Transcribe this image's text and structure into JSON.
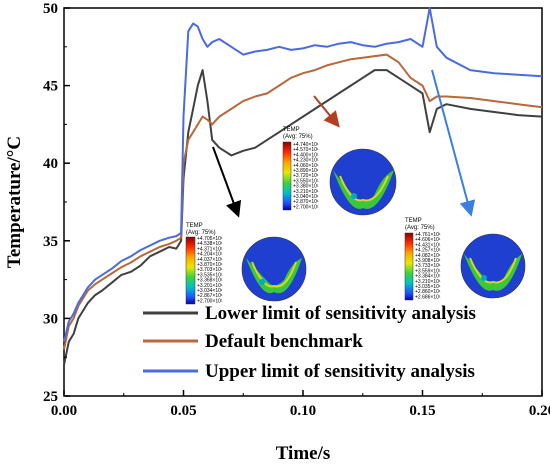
{
  "chart_data": {
    "type": "line",
    "title": "",
    "xlabel": "Time/s",
    "ylabel": "Temperature/°C",
    "xlim": [
      0.0,
      0.2
    ],
    "ylim": [
      25,
      50
    ],
    "xticks": [
      0.0,
      0.05,
      0.1,
      0.15,
      0.2
    ],
    "xtick_labels": [
      "0.00",
      "0.05",
      "0.10",
      "0.15",
      "0.20"
    ],
    "yticks": [
      25,
      30,
      35,
      40,
      45,
      50
    ],
    "ytick_labels": [
      "25",
      "30",
      "35",
      "40",
      "45",
      "50"
    ],
    "grid": false,
    "legend": "bottom-right",
    "series": [
      {
        "name": "Lower limit of sensitivity analysis",
        "color": "#404040",
        "x": [
          0.0,
          0.002,
          0.004,
          0.006,
          0.008,
          0.01,
          0.013,
          0.016,
          0.02,
          0.024,
          0.028,
          0.032,
          0.036,
          0.04,
          0.044,
          0.047,
          0.049,
          0.05,
          0.052,
          0.054,
          0.056,
          0.058,
          0.06,
          0.062,
          0.065,
          0.07,
          0.075,
          0.08,
          0.085,
          0.09,
          0.095,
          0.1,
          0.105,
          0.11,
          0.115,
          0.12,
          0.125,
          0.13,
          0.135,
          0.14,
          0.145,
          0.15,
          0.153,
          0.156,
          0.16,
          0.17,
          0.18,
          0.19,
          0.2
        ],
        "y": [
          27.0,
          28.5,
          29.0,
          30.0,
          30.5,
          31.0,
          31.5,
          31.8,
          32.3,
          32.8,
          33.0,
          33.4,
          34.0,
          34.3,
          34.6,
          34.5,
          35.0,
          39.0,
          42.0,
          43.5,
          45.0,
          46.0,
          44.0,
          41.5,
          41.0,
          40.5,
          40.8,
          41.0,
          41.5,
          42.0,
          42.5,
          43.0,
          43.5,
          44.0,
          44.5,
          45.0,
          45.5,
          46.0,
          46.0,
          45.5,
          45.0,
          44.5,
          42.0,
          43.5,
          43.8,
          43.5,
          43.3,
          43.1,
          43.0
        ]
      },
      {
        "name": "Default benchmark",
        "color": "#b8683a",
        "x": [
          0.0,
          0.002,
          0.004,
          0.006,
          0.008,
          0.01,
          0.013,
          0.016,
          0.02,
          0.024,
          0.028,
          0.032,
          0.036,
          0.04,
          0.044,
          0.047,
          0.049,
          0.05,
          0.052,
          0.054,
          0.056,
          0.058,
          0.06,
          0.062,
          0.065,
          0.07,
          0.075,
          0.08,
          0.085,
          0.09,
          0.095,
          0.1,
          0.105,
          0.11,
          0.115,
          0.12,
          0.125,
          0.13,
          0.135,
          0.14,
          0.145,
          0.15,
          0.153,
          0.156,
          0.16,
          0.17,
          0.18,
          0.19,
          0.2
        ],
        "y": [
          28.0,
          29.5,
          30.0,
          30.8,
          31.3,
          31.8,
          32.2,
          32.5,
          32.9,
          33.3,
          33.6,
          34.0,
          34.3,
          34.6,
          34.8,
          35.0,
          35.2,
          40.0,
          41.5,
          42.0,
          42.5,
          43.0,
          42.8,
          42.5,
          43.0,
          43.5,
          44.0,
          44.3,
          44.5,
          45.0,
          45.5,
          45.8,
          46.0,
          46.3,
          46.5,
          46.7,
          46.8,
          46.9,
          47.0,
          46.5,
          45.5,
          45.0,
          44.0,
          44.3,
          44.3,
          44.2,
          44.0,
          43.8,
          43.6
        ]
      },
      {
        "name": "Upper limit of sensitivity analysis",
        "color": "#4a6be0",
        "x": [
          0.0,
          0.002,
          0.004,
          0.006,
          0.008,
          0.01,
          0.013,
          0.016,
          0.02,
          0.024,
          0.028,
          0.032,
          0.036,
          0.04,
          0.044,
          0.047,
          0.049,
          0.05,
          0.052,
          0.054,
          0.056,
          0.058,
          0.06,
          0.062,
          0.065,
          0.07,
          0.075,
          0.08,
          0.085,
          0.09,
          0.095,
          0.1,
          0.105,
          0.11,
          0.115,
          0.12,
          0.125,
          0.13,
          0.135,
          0.14,
          0.145,
          0.15,
          0.153,
          0.156,
          0.16,
          0.17,
          0.18,
          0.19,
          0.2
        ],
        "y": [
          28.5,
          29.8,
          30.3,
          31.0,
          31.5,
          32.0,
          32.5,
          32.8,
          33.2,
          33.7,
          34.0,
          34.4,
          34.7,
          35.0,
          35.2,
          35.3,
          35.5,
          43.0,
          48.5,
          49.0,
          48.8,
          48.0,
          47.5,
          47.8,
          48.0,
          47.5,
          47.0,
          47.2,
          47.3,
          47.5,
          47.3,
          47.4,
          47.6,
          47.5,
          47.7,
          47.8,
          47.6,
          47.5,
          47.7,
          47.8,
          48.0,
          47.5,
          50.0,
          47.5,
          46.8,
          46.0,
          45.8,
          45.7,
          45.6
        ]
      }
    ],
    "insets": [
      {
        "title": "TEMP",
        "subtitle": "(Avg: 75%)",
        "values": [
          "+4.705×10¹",
          "+4.538×10¹",
          "+4.371×10¹",
          "+4.204×10¹",
          "+4.037×10¹",
          "+3.870×10¹",
          "+3.703×10¹",
          "+3.535×10¹",
          "+3.368×10¹",
          "+3.201×10¹",
          "+3.034×10¹",
          "+2.867×10¹",
          "+2.700×10¹"
        ]
      },
      {
        "title": "TEMP",
        "subtitle": "(Avg: 75%)",
        "values": [
          "+4.740×10¹",
          "+4.570×10¹",
          "+4.400×10¹",
          "+4.230×10¹",
          "+4.060×10¹",
          "+3.890×10¹",
          "+3.720×10¹",
          "+3.550×10¹",
          "+3.380×10¹",
          "+3.210×10¹",
          "+3.040×10¹",
          "+2.870×10¹",
          "+2.700×10¹"
        ]
      },
      {
        "title": "TEMP",
        "subtitle": "(Avg: 75%)",
        "values": [
          "+4.761×10¹",
          "+4.606×10¹",
          "+4.431×10¹",
          "+4.257×10¹",
          "+4.082×10¹",
          "+3.908×10¹",
          "+3.733×10¹",
          "+3.559×10¹",
          "+3.384×10¹",
          "+3.210×10¹",
          "+3.035×10¹",
          "+2.860×10¹",
          "+2.686×10¹"
        ]
      }
    ]
  }
}
